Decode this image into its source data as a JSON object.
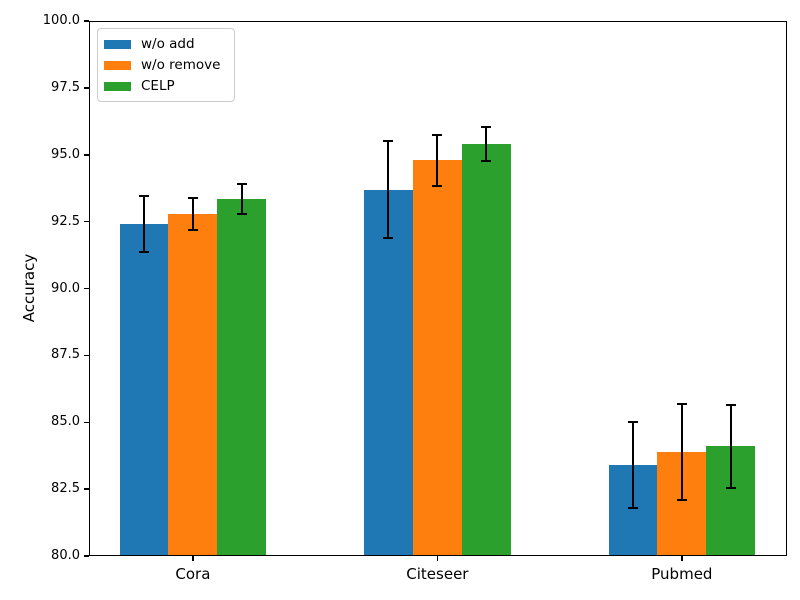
{
  "figure": {
    "background": "#ffffff",
    "axis_color": "#000000",
    "error_bar_color": "#000000"
  },
  "chart_data": {
    "type": "bar",
    "ylabel": "Accuracy",
    "categories": [
      "Cora",
      "Citeseer",
      "Pubmed"
    ],
    "series": [
      {
        "name": "w/o add",
        "color": "#1f77b4",
        "values": [
          92.4,
          93.7,
          83.4
        ],
        "errors": [
          1.05,
          1.8,
          1.6
        ]
      },
      {
        "name": "w/o remove",
        "color": "#ff7f0e",
        "values": [
          92.8,
          94.8,
          83.9
        ],
        "errors": [
          0.6,
          0.95,
          1.8
        ]
      },
      {
        "name": "CELP",
        "color": "#2ca02c",
        "values": [
          93.35,
          95.4,
          84.1
        ],
        "errors": [
          0.55,
          0.65,
          1.55
        ]
      }
    ],
    "ylim": [
      80.0,
      100.0
    ],
    "yticks": [
      "80.0",
      "82.5",
      "85.0",
      "87.5",
      "90.0",
      "92.5",
      "95.0",
      "97.5",
      "100.0"
    ],
    "xlim": [
      -0.425,
      2.43
    ],
    "bar_width": 0.2,
    "grid": false,
    "legend_position": "upper left"
  }
}
